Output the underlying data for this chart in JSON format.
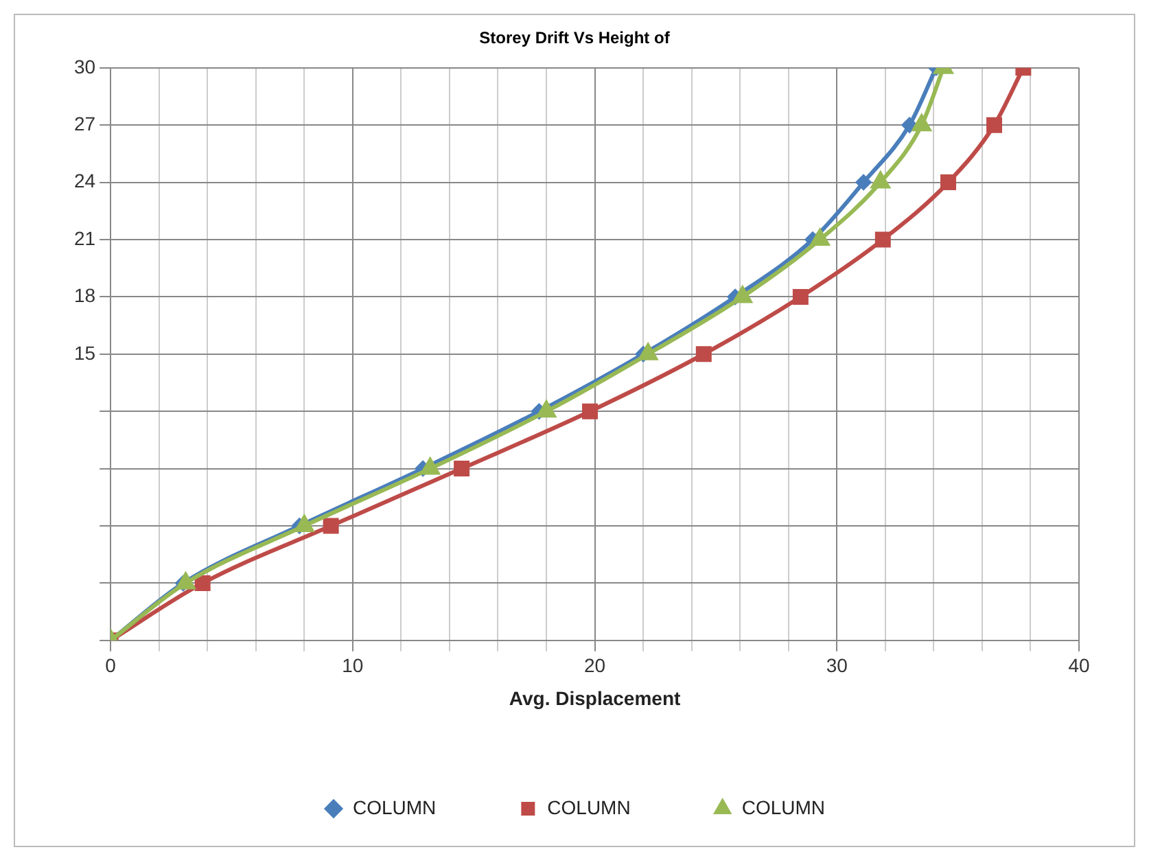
{
  "chart_data": {
    "type": "line",
    "title": "Storey Drift Vs Height of",
    "xlabel": "Avg. Displacement",
    "xlim": [
      0,
      40
    ],
    "xticks": [
      0,
      {
        "value": 2,
        "label": null
      },
      {
        "value": 4,
        "label": null
      },
      {
        "value": 6,
        "label": null
      },
      {
        "value": 8,
        "label": null
      },
      10,
      {
        "value": 12,
        "label": null
      },
      {
        "value": 14,
        "label": null
      },
      {
        "value": 16,
        "label": null
      },
      {
        "value": 18,
        "label": null
      },
      20,
      {
        "value": 22,
        "label": null
      },
      {
        "value": 24,
        "label": null
      },
      {
        "value": 26,
        "label": null
      },
      {
        "value": 28,
        "label": null
      },
      30,
      {
        "value": 32,
        "label": null
      },
      {
        "value": 34,
        "label": null
      },
      {
        "value": 36,
        "label": null
      },
      {
        "value": 38,
        "label": null
      },
      40
    ],
    "ylim": [
      0,
      30
    ],
    "yticks": [
      {
        "value": 0,
        "label": null
      },
      {
        "value": 3,
        "label": null
      },
      {
        "value": 6,
        "label": null
      },
      {
        "value": 9,
        "label": null
      },
      {
        "value": 12,
        "label": null
      },
      15,
      18,
      21,
      24,
      27,
      30
    ],
    "grid": true,
    "legend": "bottom",
    "series": [
      {
        "name": "COLUMN",
        "color": "#4a7ebb",
        "marker": "diamond",
        "x": [
          0,
          3.0,
          7.8,
          12.9,
          17.7,
          22.0,
          25.8,
          29.0,
          31.1,
          33.0,
          34.1
        ],
        "values": [
          0,
          3,
          6,
          9,
          12,
          15,
          18,
          21,
          24,
          27,
          30
        ]
      },
      {
        "name": "COLUMN",
        "color": "#be4b48",
        "marker": "square",
        "x": [
          0,
          3.8,
          9.1,
          14.5,
          19.8,
          24.5,
          28.5,
          31.9,
          34.6,
          36.5,
          37.7
        ],
        "values": [
          0,
          3,
          6,
          9,
          12,
          15,
          18,
          21,
          24,
          27,
          30
        ]
      },
      {
        "name": "COLUMN",
        "color": "#98b954",
        "marker": "triangle",
        "x": [
          0,
          3.1,
          8.0,
          13.2,
          18.0,
          22.2,
          26.1,
          29.3,
          31.8,
          33.5,
          34.4
        ],
        "values": [
          0,
          3,
          6,
          9,
          12,
          15,
          18,
          21,
          24,
          27,
          30
        ]
      }
    ]
  }
}
